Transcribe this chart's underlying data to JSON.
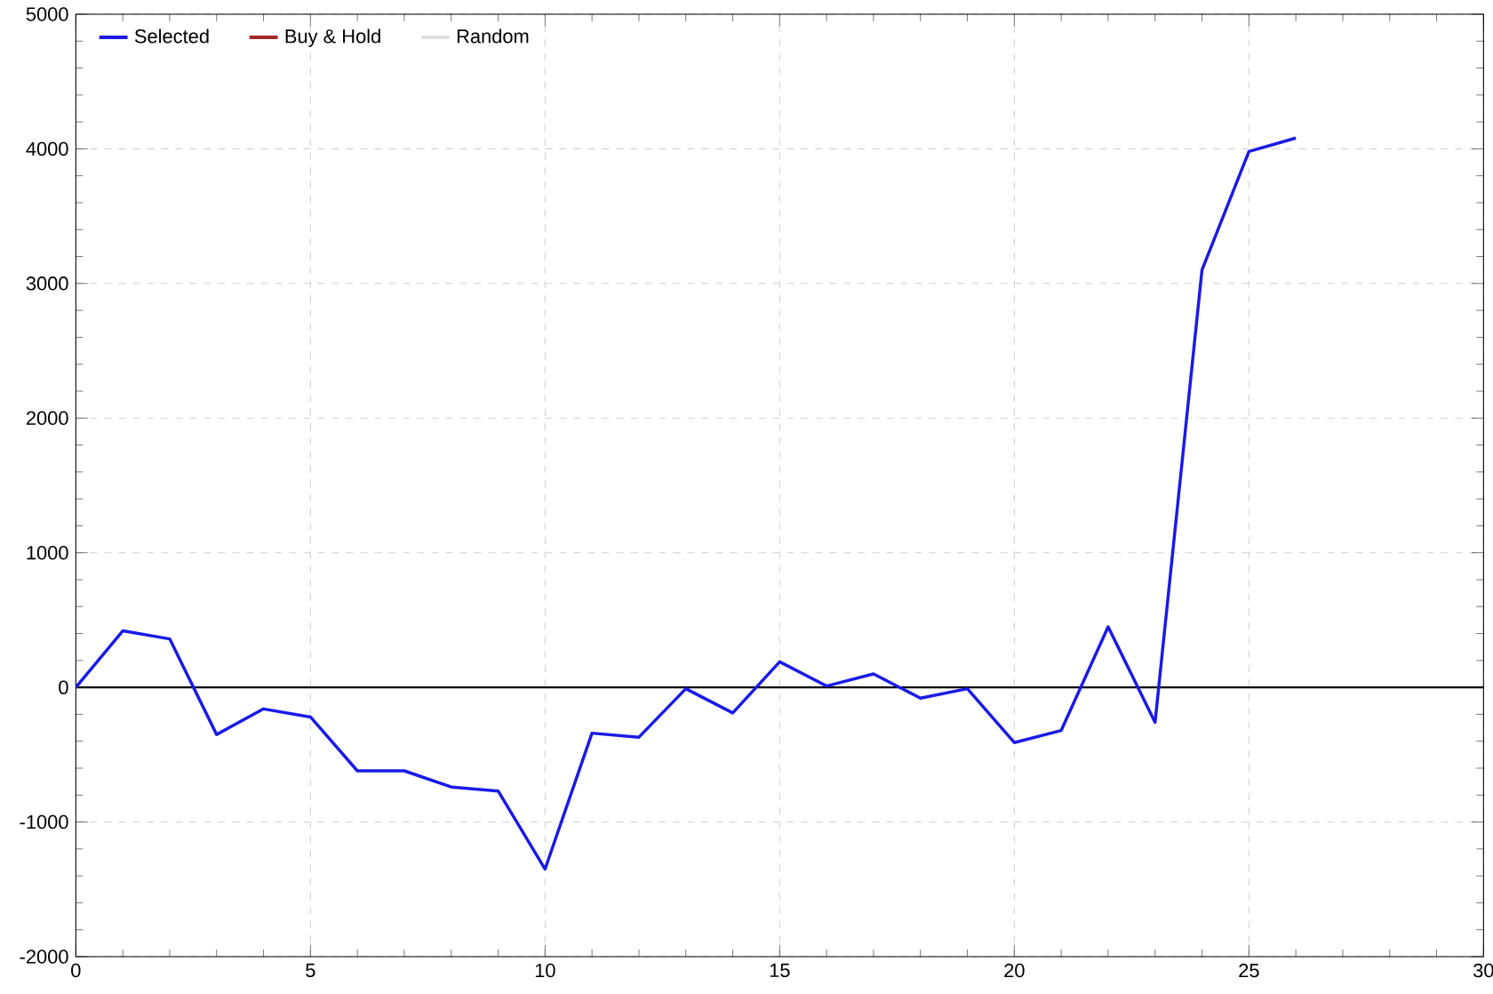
{
  "chart_data": {
    "type": "line",
    "x": [
      0,
      1,
      2,
      3,
      4,
      5,
      6,
      7,
      8,
      9,
      10,
      11,
      12,
      13,
      14,
      15,
      16,
      17,
      18,
      19,
      20,
      21,
      22,
      23,
      24,
      25,
      26
    ],
    "series": [
      {
        "name": "Selected",
        "color": "#1a1ae6",
        "values": [
          0,
          420,
          360,
          -350,
          -160,
          -220,
          -620,
          -620,
          -740,
          -770,
          -1350,
          -340,
          -370,
          -10,
          -190,
          190,
          10,
          100,
          -80,
          -10,
          -410,
          -320,
          450,
          -260,
          3100,
          3980,
          4080
        ]
      },
      {
        "name": "Buy & Hold",
        "color": "#a52a2a",
        "values": [
          null,
          null,
          null,
          null,
          null,
          null,
          null,
          null,
          null,
          null,
          null,
          null,
          null,
          null,
          null,
          null,
          null,
          null,
          null,
          null,
          null,
          null,
          null,
          null,
          null,
          null,
          null
        ]
      },
      {
        "name": "Random",
        "color": "#e0e0e0",
        "values": [
          null,
          null,
          null,
          null,
          null,
          null,
          null,
          null,
          null,
          null,
          null,
          null,
          null,
          null,
          null,
          null,
          null,
          null,
          null,
          null,
          null,
          null,
          null,
          null,
          null,
          null,
          null
        ]
      }
    ],
    "xlim": [
      0,
      30
    ],
    "xticks": [
      0,
      5,
      10,
      15,
      20,
      25,
      30
    ],
    "ylim": [
      -2000,
      5000
    ],
    "yticks": [
      -2000,
      -1000,
      0,
      1000,
      2000,
      3000,
      4000,
      5000
    ],
    "ref_lines": [
      {
        "axis": "y",
        "value": 0,
        "color": "#000000"
      }
    ],
    "grid": true,
    "legend": "top left",
    "marker": "none",
    "line_style": "solid"
  }
}
